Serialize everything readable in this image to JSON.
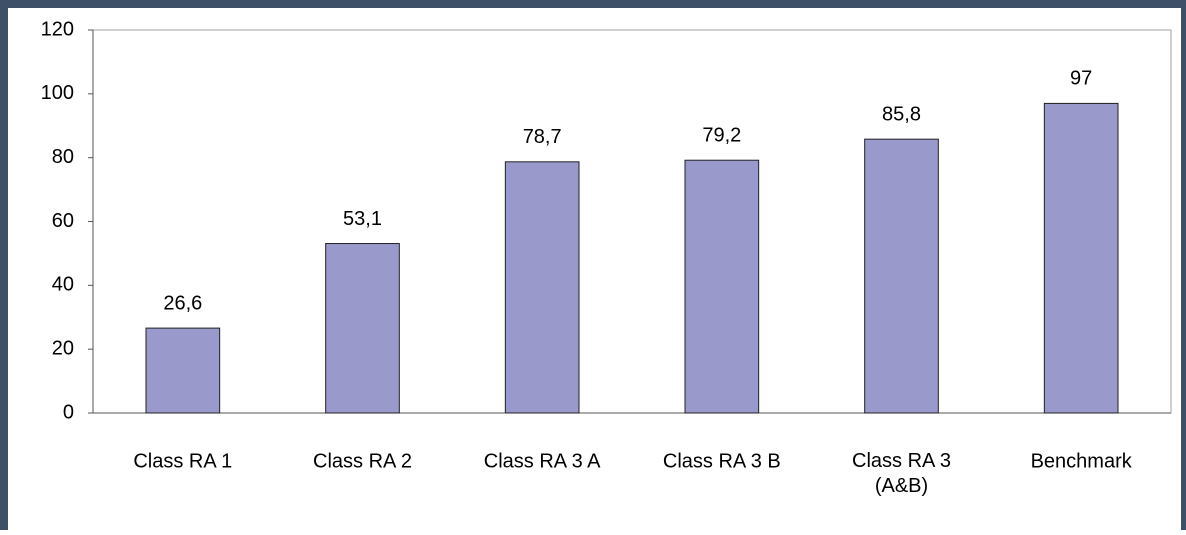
{
  "chart_data": {
    "type": "bar",
    "categories": [
      "Class RA 1",
      "Class RA 2",
      "Class RA 3 A",
      "Class RA 3 B",
      "Class RA 3\n(A&B)",
      "Benchmark"
    ],
    "values": [
      26.6,
      53.1,
      78.7,
      79.2,
      85.8,
      97
    ],
    "value_labels": [
      "26,6",
      "53,1",
      "78,7",
      "79,2",
      "85,8",
      "97"
    ],
    "color": "#9999cc",
    "ylim": [
      0,
      120
    ],
    "yticks": [
      0,
      20,
      40,
      60,
      80,
      100,
      120
    ],
    "grid": false
  }
}
